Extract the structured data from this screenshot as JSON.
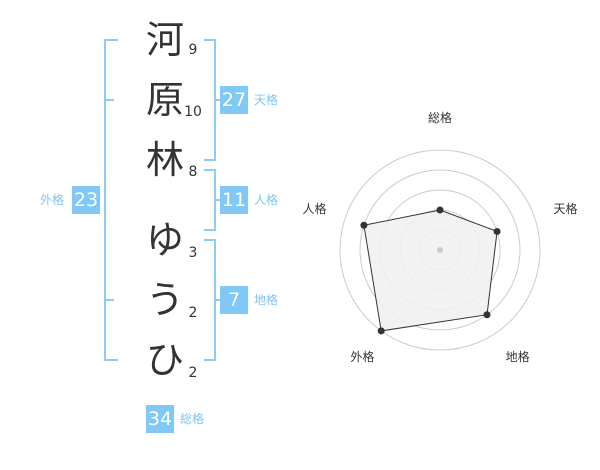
{
  "characters": [
    {
      "char": "河",
      "strokes": "9"
    },
    {
      "char": "原",
      "strokes": "10"
    },
    {
      "char": "林",
      "strokes": "8"
    },
    {
      "char": "ゆ",
      "strokes": "3"
    },
    {
      "char": "う",
      "strokes": "2"
    },
    {
      "char": "ひ",
      "strokes": "2"
    }
  ],
  "fortunes": {
    "tenkaku": {
      "label": "天格",
      "value": "27"
    },
    "jinkaku": {
      "label": "人格",
      "value": "11"
    },
    "chikaku": {
      "label": "地格",
      "value": "7"
    },
    "gaikaku": {
      "label": "外格",
      "value": "23"
    },
    "soukaku": {
      "label": "総格",
      "value": "34"
    }
  },
  "chart_data": {
    "type": "radar",
    "axes": [
      "総格",
      "天格",
      "地格",
      "外格",
      "人格"
    ],
    "values": [
      2,
      3,
      4,
      5,
      4
    ],
    "range": [
      0,
      5
    ],
    "rings": 5,
    "colors": {
      "fill": "#f0f0f0",
      "line": "#333333",
      "grid": "#cccccc",
      "accent": "#80c8f6"
    }
  }
}
